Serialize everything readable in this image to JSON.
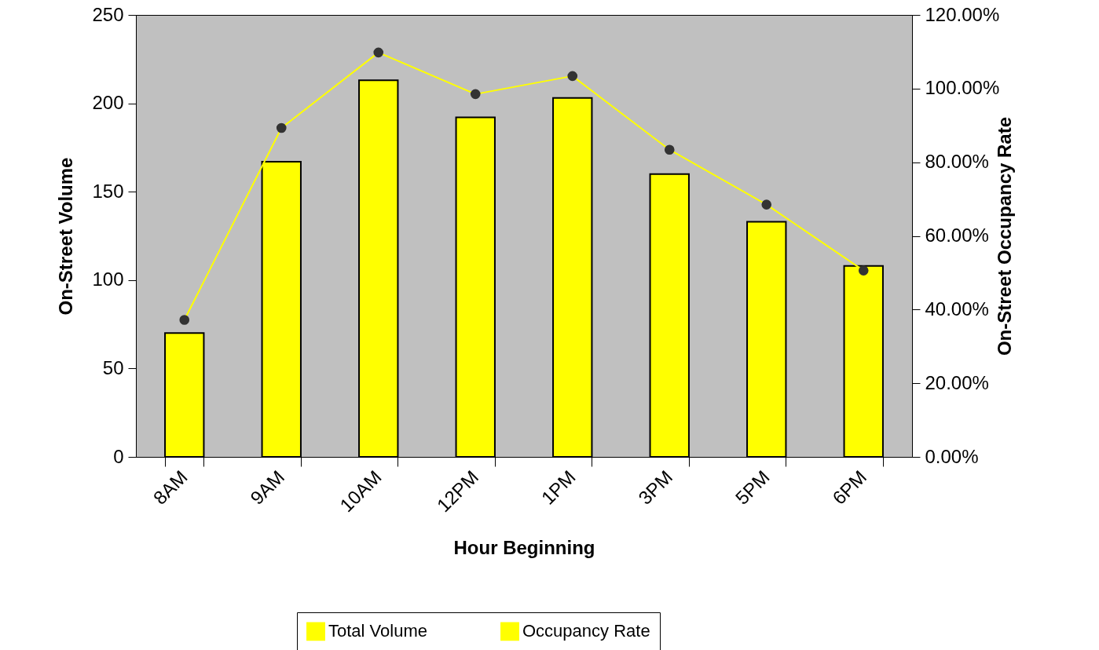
{
  "chart_data": {
    "type": "bar",
    "xlabel": "Hour Beginning",
    "ylabel": "On-Street Volume",
    "y2label": "On-Street Occupancy Rate",
    "categories": [
      "8AM",
      "9AM",
      "10AM",
      "12PM",
      "1PM",
      "3PM",
      "5PM",
      "6PM"
    ],
    "series": [
      {
        "name": "Total Volume",
        "color": "#ffff00",
        "values": [
          70,
          167,
          213,
          192,
          203,
          160,
          133,
          108
        ]
      },
      {
        "name": "Occupancy Rate",
        "type": "line",
        "axis": "y2",
        "color": "#ffff00",
        "values": [
          37.2,
          89.3,
          109.8,
          98.5,
          103.4,
          83.4,
          68.5,
          50.6
        ]
      }
    ],
    "ylim": [
      0,
      250
    ],
    "yticks": [
      0,
      50,
      100,
      150,
      200,
      250
    ],
    "y2lim": [
      0,
      120
    ],
    "y2ticks": [
      {
        "value": 0,
        "label": "0.00%"
      },
      {
        "value": 20,
        "label": "20.00%"
      },
      {
        "value": 40,
        "label": "40.00%"
      },
      {
        "value": 60,
        "label": "60.00%"
      },
      {
        "value": 80,
        "label": "80.00%"
      },
      {
        "value": 100,
        "label": "100.00%"
      },
      {
        "value": 120,
        "label": "120.00%"
      }
    ],
    "grid": false,
    "legend": "bottom",
    "marker": "circle"
  }
}
